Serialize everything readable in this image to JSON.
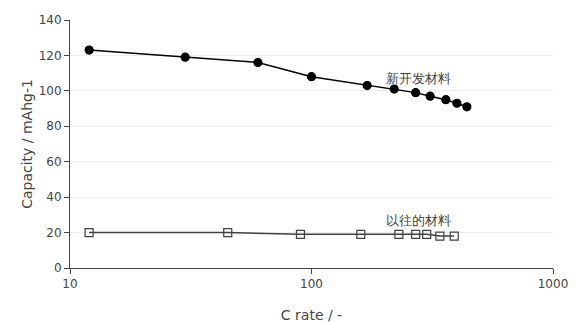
{
  "chart_data": {
    "type": "line",
    "xlabel": "C rate / -",
    "ylabel": "Capacity / mAhg-1",
    "log": "x",
    "xlim": [
      10,
      1000
    ],
    "xticks": [
      10,
      100,
      1000
    ],
    "ylim": [
      0,
      140
    ],
    "yticks": [
      0,
      20,
      40,
      60,
      80,
      100,
      120,
      140
    ],
    "grid": "y",
    "series": [
      {
        "color": "#404040",
        "marker": "square-open",
        "x": [
          12,
          45,
          90,
          160,
          230,
          270,
          300,
          340,
          390
        ],
        "values": [
          20,
          20,
          19,
          19,
          19,
          19,
          19,
          18,
          18
        ]
      },
      {
        "color": "#000000",
        "marker": "circle",
        "x": [
          12,
          30,
          60,
          100,
          170,
          220,
          270,
          310,
          360,
          400,
          440
        ],
        "values": [
          123,
          119,
          116,
          108,
          103,
          101,
          99,
          97,
          95,
          93,
          91
        ]
      }
    ],
    "annotations": [
      {
        "text": "新开发材料",
        "x": 200,
        "y": 107
      },
      {
        "text": "以往的材料",
        "x": 200,
        "y": 27
      }
    ]
  }
}
